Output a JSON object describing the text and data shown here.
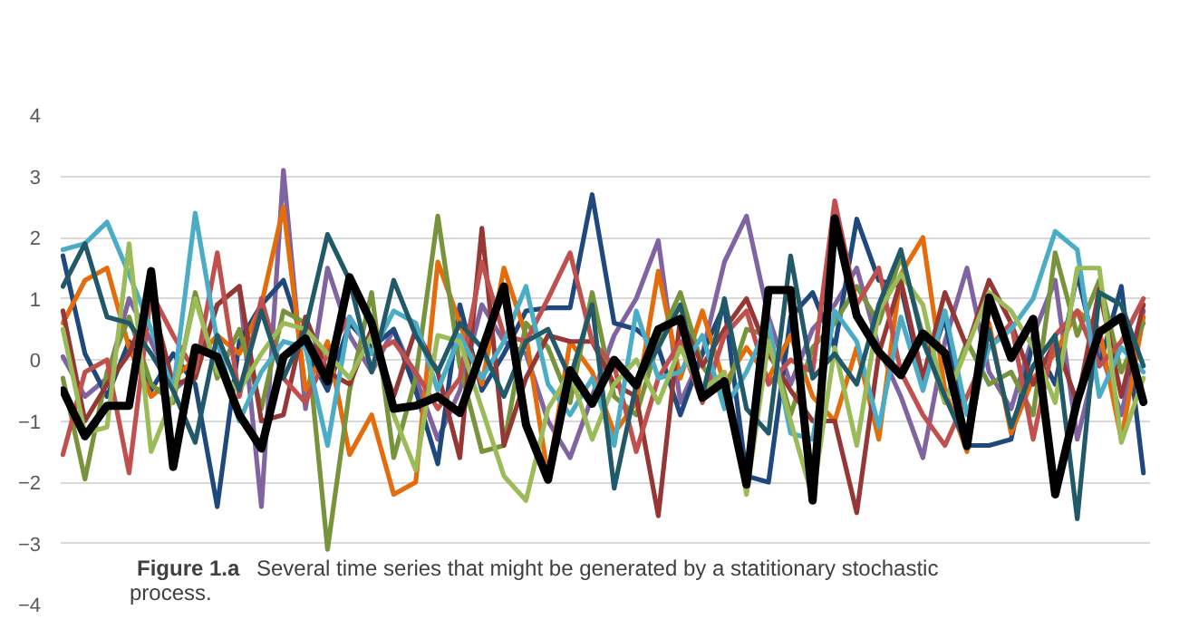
{
  "chart_data": {
    "type": "line",
    "categories": [
      null,
      null,
      null,
      null,
      null,
      null,
      null,
      null,
      null,
      null,
      null,
      null,
      null,
      null,
      null,
      null,
      null,
      null,
      null,
      null,
      null,
      null,
      null,
      null,
      null,
      null,
      null,
      null,
      null,
      null,
      null,
      null,
      null,
      null,
      null,
      null,
      null,
      null,
      null,
      null,
      null,
      null,
      null,
      null,
      null,
      null,
      null,
      null,
      null,
      null
    ],
    "series": [
      {
        "color": "#8064a2",
        "values": [
          0.05,
          -0.6,
          -0.3,
          1.0,
          0.3,
          -0.5,
          -0.2,
          0.9,
          1.2,
          -2.4,
          3.1,
          -0.8,
          1.5,
          0.4,
          -0.2,
          0.5,
          -0.3,
          -1.3,
          -0.5,
          0.9,
          0.3,
          0.1,
          -1.0,
          -1.6,
          -0.6,
          0.4,
          1.0,
          1.95,
          -0.7,
          0.1,
          1.6,
          2.35,
          0.7,
          -0.4,
          0.5,
          0.9,
          1.5,
          0.2,
          -0.6,
          -1.6,
          0.3,
          1.5,
          -0.2,
          -0.8,
          0.4,
          1.3,
          -1.3,
          0.2,
          -0.9,
          0.8
        ]
      },
      {
        "color": "#1f497d",
        "values": [
          1.7,
          0.1,
          -0.6,
          0.3,
          -0.5,
          0.1,
          -0.4,
          -2.4,
          0.3,
          0.9,
          1.3,
          0.2,
          -0.5,
          0.6,
          0.2,
          0.5,
          -0.5,
          -1.7,
          0.9,
          -0.5,
          0.1,
          0.8,
          0.85,
          0.85,
          2.7,
          0.6,
          0.5,
          0.2,
          -0.9,
          0.1,
          0.9,
          -1.9,
          -2.0,
          0.7,
          1.1,
          0.2,
          2.3,
          1.3,
          1.2,
          -0.4,
          0.7,
          -1.4,
          -1.4,
          -1.3,
          0.3,
          -0.4,
          1.4,
          -0.1,
          1.2,
          -1.85
        ]
      },
      {
        "color": "#e46c0a",
        "values": [
          0.6,
          1.3,
          1.5,
          0.2,
          -0.6,
          -0.3,
          0.0,
          0.4,
          0.1,
          0.9,
          2.5,
          -0.5,
          0.3,
          -1.55,
          -0.9,
          -2.2,
          -2.0,
          1.6,
          0.6,
          -0.4,
          1.5,
          0.4,
          -1.9,
          0.3,
          -0.2,
          -1.2,
          -0.7,
          1.45,
          -0.3,
          0.8,
          -0.4,
          0.2,
          -0.3,
          0.4,
          -0.6,
          -1.0,
          0.2,
          -1.3,
          1.4,
          2.0,
          -0.5,
          -1.5,
          0.6,
          -1.2,
          -0.3,
          0.1,
          0.8,
          0.5,
          -1.3,
          0.7
        ]
      },
      {
        "color": "#77933c",
        "values": [
          -0.3,
          -1.95,
          -0.2,
          0.7,
          -0.4,
          -0.7,
          1.1,
          -0.3,
          0.5,
          -0.8,
          0.8,
          0.6,
          -3.1,
          -0.5,
          1.1,
          -1.6,
          -0.3,
          2.35,
          -0.1,
          -1.5,
          -1.4,
          0.6,
          0.2,
          -0.7,
          1.1,
          -0.6,
          -0.9,
          0.3,
          1.1,
          -0.1,
          -0.6,
          0.5,
          0.4,
          -0.9,
          0.2,
          0.6,
          1.2,
          0.6,
          1.7,
          0.4,
          -0.7,
          0.3,
          -0.4,
          -0.2,
          -0.9,
          1.75,
          0.4,
          1.3,
          -0.2,
          0.6
        ]
      },
      {
        "color": "#953735",
        "values": [
          0.8,
          -1.0,
          -0.4,
          0.1,
          1.0,
          -0.4,
          -0.3,
          0.9,
          1.2,
          -1.0,
          -0.9,
          0.7,
          -0.2,
          -0.4,
          0.5,
          -0.6,
          0.5,
          -0.2,
          -1.6,
          2.15,
          -1.4,
          -0.3,
          0.4,
          0.3,
          0.3,
          -0.4,
          -0.6,
          -2.55,
          0.7,
          -0.1,
          0.5,
          1.0,
          0.1,
          -0.5,
          -1.0,
          -1.0,
          -2.5,
          0.1,
          1.3,
          -0.3,
          1.1,
          0.2,
          1.3,
          0.6,
          -0.4,
          0.3,
          -0.7,
          1.15,
          -0.6,
          0.9
        ]
      },
      {
        "color": "#c0504d",
        "values": [
          -1.55,
          -0.2,
          0.0,
          -1.85,
          1.1,
          0.4,
          -0.2,
          1.75,
          -0.6,
          1.0,
          -0.3,
          -0.7,
          0.1,
          0.7,
          0.1,
          0.3,
          -0.2,
          -0.8,
          -0.3,
          1.6,
          0.4,
          0.3,
          1.0,
          1.75,
          0.3,
          -0.1,
          -1.5,
          -0.3,
          0.3,
          -0.7,
          0.4,
          0.8,
          -0.4,
          0.0,
          -0.2,
          2.6,
          0.9,
          1.5,
          -0.2,
          -0.9,
          -1.4,
          -0.6,
          0.2,
          0.6,
          -1.3,
          0.4,
          0.8,
          -0.1,
          0.3,
          1.0
        ]
      },
      {
        "color": "#4bacc6",
        "values": [
          1.8,
          1.9,
          2.25,
          1.4,
          0.5,
          -0.5,
          2.4,
          0.3,
          -1.0,
          -0.2,
          0.3,
          0.2,
          -1.4,
          0.7,
          0.1,
          0.8,
          0.6,
          -0.5,
          0.4,
          -0.3,
          0.3,
          1.2,
          -0.4,
          -0.9,
          -0.3,
          -1.4,
          0.8,
          -0.3,
          -0.2,
          0.4,
          -0.8,
          -0.2,
          0.6,
          -1.2,
          -1.3,
          0.8,
          0.3,
          -1.1,
          0.7,
          -0.5,
          0.8,
          -0.9,
          0.2,
          0.5,
          1.0,
          2.1,
          1.8,
          -0.6,
          0.2,
          -0.2
        ]
      },
      {
        "color": "#9bbb59",
        "values": [
          0.5,
          -1.2,
          -1.1,
          1.9,
          -1.5,
          -0.6,
          1.0,
          -0.2,
          -0.5,
          0.1,
          0.6,
          0.5,
          0.1,
          -0.3,
          0.4,
          -0.9,
          -1.8,
          0.4,
          0.3,
          -0.8,
          -1.9,
          -2.3,
          -0.8,
          -0.2,
          -1.3,
          -0.4,
          0.0,
          -0.7,
          0.2,
          -0.5,
          -0.2,
          -2.2,
          0.3,
          -1.0,
          -2.25,
          0.2,
          -1.4,
          0.8,
          1.4,
          0.9,
          -0.7,
          0.2,
          1.1,
          0.8,
          0.2,
          -0.7,
          1.5,
          1.5,
          -1.35,
          -0.3
        ]
      },
      {
        "color": "#215968",
        "values": [
          1.2,
          1.9,
          0.7,
          0.6,
          0.1,
          -0.5,
          -1.35,
          0.4,
          -0.5,
          0.8,
          -0.3,
          0.5,
          2.05,
          1.3,
          -0.2,
          1.3,
          0.4,
          -0.2,
          0.6,
          0.2,
          -0.6,
          0.3,
          0.5,
          -0.3,
          0.9,
          -2.1,
          -0.4,
          0.2,
          0.9,
          -0.6,
          1.0,
          -0.8,
          -1.2,
          1.7,
          -0.3,
          0.1,
          -0.4,
          0.9,
          1.8,
          0.3,
          -0.6,
          -1.4,
          0.5,
          -1.1,
          -0.1,
          0.4,
          -2.6,
          1.1,
          0.9,
          -0.1
        ]
      },
      {
        "color": "#000000",
        "values": [
          -0.5,
          -1.25,
          -0.75,
          -0.75,
          1.45,
          -1.75,
          0.2,
          0.05,
          -0.9,
          -1.45,
          0.05,
          0.35,
          -0.35,
          1.35,
          0.6,
          -0.8,
          -0.75,
          -0.6,
          -0.87,
          0.15,
          1.2,
          -1.06,
          -1.96,
          -0.17,
          -0.72,
          0.0,
          -0.42,
          0.5,
          0.67,
          -0.62,
          -0.35,
          -2.04,
          1.14,
          1.14,
          -2.3,
          2.31,
          0.72,
          0.13,
          -0.25,
          0.43,
          0.11,
          -1.41,
          1.02,
          0.03,
          0.67,
          -2.2,
          -0.67,
          0.45,
          0.7,
          -0.69
        ]
      }
    ],
    "ylim": [
      -4,
      4
    ],
    "yticks": [
      -4,
      -3,
      -2,
      -1,
      0,
      1,
      2,
      3,
      4
    ],
    "grid": "y",
    "tick_labels": "y",
    "annotations": [
      "Figure 1.a",
      "Several time series that might be generated by a statitionary stochastic process."
    ]
  }
}
